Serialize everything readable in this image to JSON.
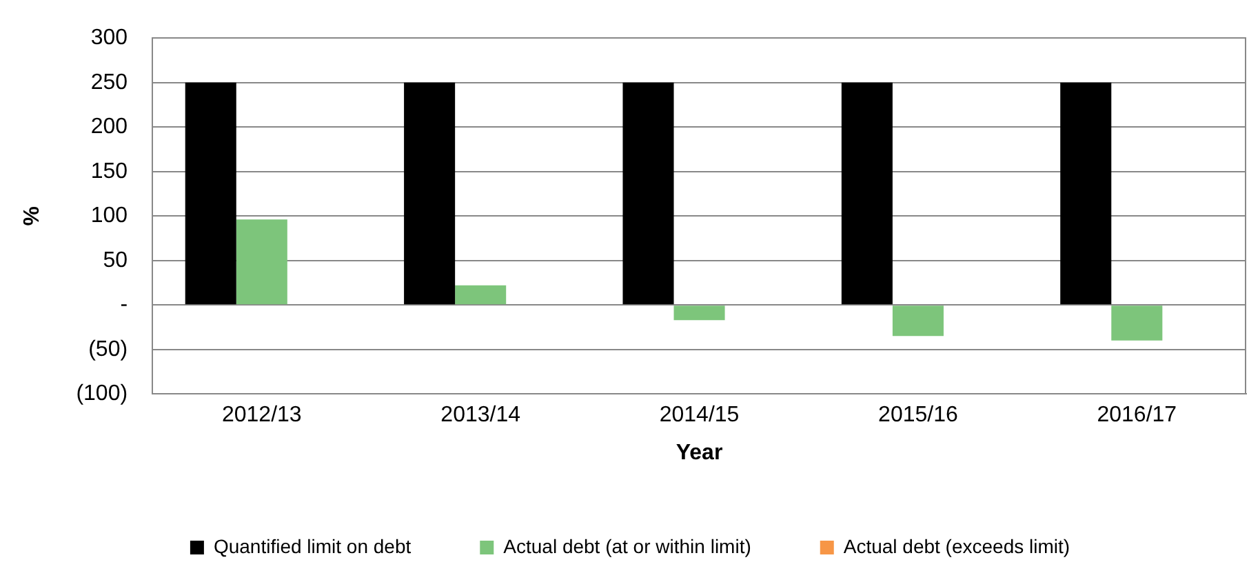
{
  "chart_data": {
    "type": "bar",
    "xlabel": "Year",
    "ylabel": "%",
    "categories": [
      "2012/13",
      "2013/14",
      "2014/15",
      "2015/16",
      "2016/17"
    ],
    "series": [
      {
        "name": "Quantified limit on debt",
        "color": "#000000",
        "values": [
          250,
          250,
          250,
          250,
          250
        ]
      },
      {
        "name": "Actual debt (at or within limit)",
        "color": "#7dc57b",
        "values": [
          96,
          22,
          -17,
          -35,
          -40
        ]
      },
      {
        "name": "Actual debt (exceeds limit)",
        "color": "#f79646",
        "values": [
          null,
          null,
          null,
          null,
          null
        ]
      }
    ],
    "ylim": [
      -100,
      300
    ],
    "yticks": [
      {
        "value": -100,
        "label": "(100)"
      },
      {
        "value": -50,
        "label": "(50)"
      },
      {
        "value": 0,
        "label": "-"
      },
      50,
      100,
      150,
      200,
      250,
      300
    ],
    "grid": "y",
    "legend": "bottom"
  }
}
